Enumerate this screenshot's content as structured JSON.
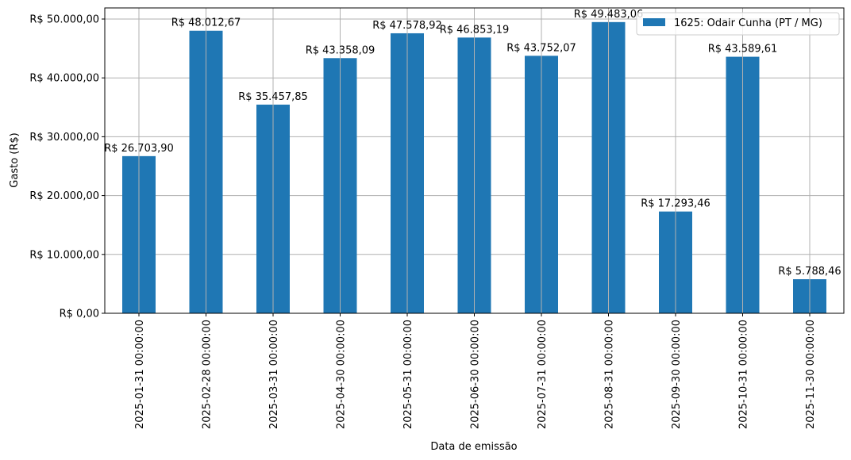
{
  "chart_data": {
    "type": "bar",
    "title": "",
    "xlabel": "Data de emissão",
    "ylabel": "Gasto (R$)",
    "ylim": [
      0,
      52000
    ],
    "grid": true,
    "legend_position": "upper right",
    "bar_color": "#1f77b4",
    "categories": [
      "2025-01-31 00:00:00",
      "2025-02-28 00:00:00",
      "2025-03-31 00:00:00",
      "2025-04-30 00:00:00",
      "2025-05-31 00:00:00",
      "2025-06-30 00:00:00",
      "2025-07-31 00:00:00",
      "2025-08-31 00:00:00",
      "2025-09-30 00:00:00",
      "2025-10-31 00:00:00",
      "2025-11-30 00:00:00"
    ],
    "series": [
      {
        "name": "1625: Odair Cunha (PT / MG)",
        "values": [
          26703.9,
          48012.67,
          35457.85,
          43358.09,
          47578.92,
          46853.19,
          43752.07,
          49483.06,
          17293.46,
          43589.61,
          5788.46
        ],
        "labels": [
          "R$ 26.703,90",
          "R$ 48.012,67",
          "R$ 35.457,85",
          "R$ 43.358,09",
          "R$ 47.578,92",
          "R$ 46.853,19",
          "R$ 43.752,07",
          "R$ 49.483,06",
          "R$ 17.293,46",
          "R$ 43.589,61",
          "R$ 5.788,46"
        ]
      }
    ],
    "yticks": [
      0,
      10000,
      20000,
      30000,
      40000,
      50000
    ],
    "ytick_labels": [
      "R$ 0,00",
      "R$ 10.000,00",
      "R$ 20.000,00",
      "R$ 30.000,00",
      "R$ 40.000,00",
      "R$ 50.000,00"
    ]
  }
}
